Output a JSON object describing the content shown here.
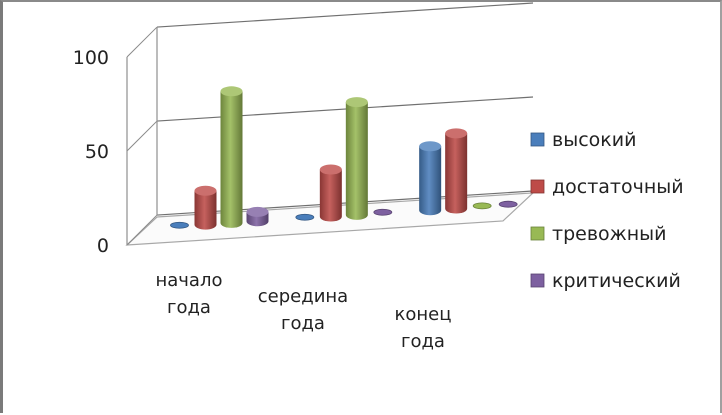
{
  "chart_data": {
    "type": "bar",
    "style": "3d-column",
    "categories": [
      [
        "начало",
        "года"
      ],
      [
        "середина",
        "года"
      ],
      [
        "конец",
        "года"
      ]
    ],
    "series": [
      {
        "name": "высокий",
        "color": "#4a7ebb",
        "values": [
          0,
          0,
          34
        ]
      },
      {
        "name": "достаточный",
        "color": "#be4b48",
        "values": [
          18,
          25,
          40
        ]
      },
      {
        "name": "тревожный",
        "color": "#98b954",
        "values": [
          70,
          60,
          0
        ]
      },
      {
        "name": "критический",
        "color": "#7d60a0",
        "values": [
          5,
          0,
          0
        ]
      }
    ],
    "yticks": [
      0,
      50,
      100
    ],
    "ylim": [
      0,
      100
    ],
    "grid": true,
    "legend_position": "right"
  }
}
